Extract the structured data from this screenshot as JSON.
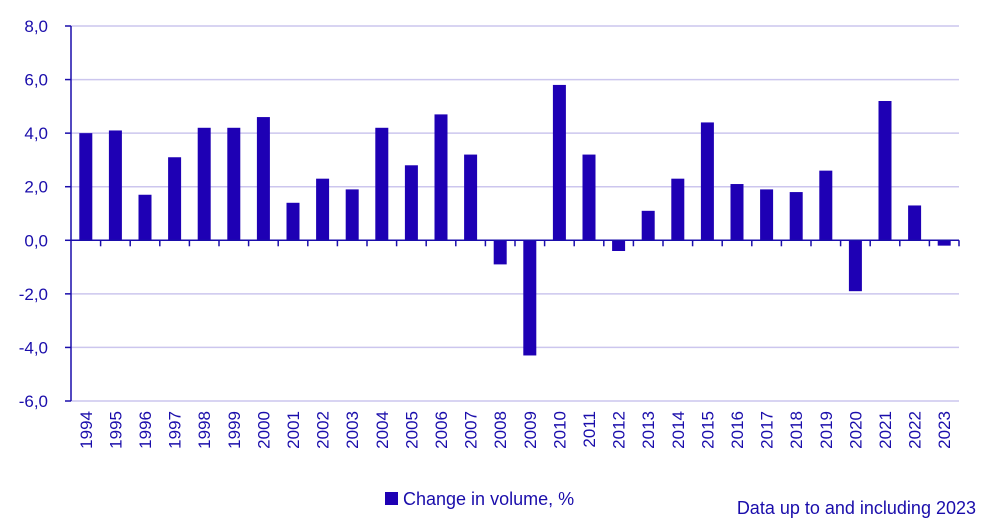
{
  "chart_data": {
    "type": "bar",
    "categories": [
      "1994",
      "1995",
      "1996",
      "1997",
      "1998",
      "1999",
      "2000",
      "2001",
      "2002",
      "2003",
      "2004",
      "2005",
      "2006",
      "2007",
      "2008",
      "2009",
      "2010",
      "2011",
      "2012",
      "2013",
      "2014",
      "2015",
      "2016",
      "2017",
      "2018",
      "2019",
      "2020",
      "2021",
      "2022",
      "2023"
    ],
    "series": [
      {
        "name": "Change in volume, %",
        "values": [
          4.0,
          4.1,
          1.7,
          3.1,
          4.2,
          4.2,
          4.6,
          1.4,
          2.3,
          1.9,
          4.2,
          2.8,
          4.7,
          3.2,
          -0.9,
          -4.3,
          5.8,
          3.2,
          -0.4,
          1.1,
          2.3,
          4.4,
          2.1,
          1.9,
          1.8,
          2.6,
          -1.9,
          5.2,
          1.3,
          -0.2
        ]
      }
    ],
    "ylim": [
      -6,
      8
    ],
    "yticks": [
      -6,
      -4,
      -2,
      0,
      2,
      4,
      6,
      8
    ],
    "ytick_labels": [
      "-6,0",
      "-4,0",
      "-2,0",
      "0,0",
      "2,0",
      "4,0",
      "6,0",
      "8,0"
    ],
    "grid": true,
    "legend_position": "bottom-center",
    "colors": {
      "bar": "#1e00b4",
      "grid": "#ccc6ee",
      "axis": "#1a0dab",
      "text": "#1a0dab"
    }
  },
  "note": "Data up to and including 2023"
}
